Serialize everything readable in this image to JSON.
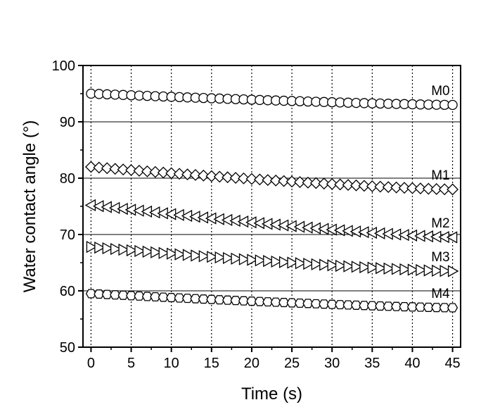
{
  "chart_data": {
    "type": "scatter",
    "xlabel": "Time (s)",
    "ylabel": "Water contact angle (°)",
    "xlim": [
      -1,
      46
    ],
    "ylim": [
      50,
      100
    ],
    "xticks": [
      0,
      5,
      10,
      15,
      20,
      25,
      30,
      35,
      40,
      45
    ],
    "yticks": [
      50,
      60,
      70,
      80,
      90,
      100
    ],
    "grid": {
      "vertical": "dotted",
      "horizontal": "solid"
    },
    "series": [
      {
        "name": "M0",
        "marker": "circle",
        "start": 95.0,
        "end": 93.0
      },
      {
        "name": "M1",
        "marker": "diamond",
        "start": 82.0,
        "end": 78.0
      },
      {
        "name": "M2",
        "marker": "triangle-left",
        "start": 75.2,
        "end": 69.5
      },
      {
        "name": "M3",
        "marker": "triangle-right",
        "start": 67.8,
        "end": 63.5
      },
      {
        "name": "M4",
        "marker": "hexagon",
        "start": 59.5,
        "end": 57.0
      }
    ],
    "x": [
      0,
      1,
      2,
      3,
      4,
      5,
      6,
      7,
      8,
      9,
      10,
      11,
      12,
      13,
      14,
      15,
      16,
      17,
      18,
      19,
      20,
      21,
      22,
      23,
      24,
      25,
      26,
      27,
      28,
      29,
      30,
      31,
      32,
      33,
      34,
      35,
      36,
      37,
      38,
      39,
      40,
      41,
      42,
      43,
      44,
      45
    ]
  }
}
